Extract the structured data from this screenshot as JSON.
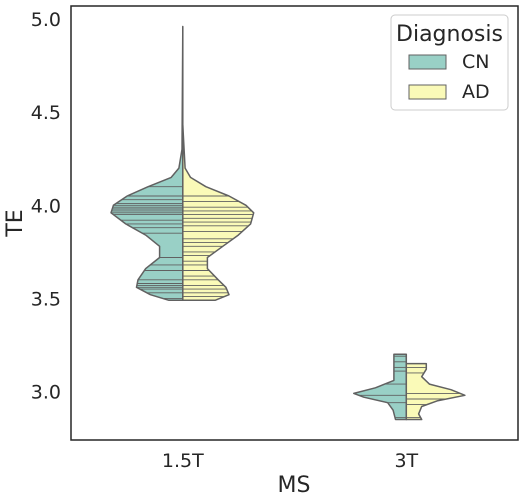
{
  "chart_data": {
    "type": "violin",
    "split": true,
    "inner": "stick",
    "xlabel": "MS",
    "ylabel": "TE",
    "categories": [
      "1.5T",
      "3T"
    ],
    "ylim": [
      2.74,
      5.07
    ],
    "yticks": [
      3.0,
      3.5,
      4.0,
      4.5,
      5.0
    ],
    "ytick_labels": [
      "3.0",
      "3.5",
      "4.0",
      "4.5",
      "5.0"
    ],
    "grid": false,
    "legend": {
      "title": "Diagnosis",
      "placement": "top-right",
      "entries": [
        {
          "name": "CN",
          "color": "#99d0c6"
        },
        {
          "name": "AD",
          "color": "#fafab8"
        }
      ]
    },
    "colors": {
      "CN": "#99d0c6",
      "AD": "#fafab8",
      "outline": "#616161",
      "axes": "#262626"
    },
    "violins": [
      {
        "category": "1.5T",
        "side": "left",
        "series": "CN",
        "ymin": 3.49,
        "ymax": 4.96,
        "density": [
          [
            3.49,
            0.18
          ],
          [
            3.52,
            0.42
          ],
          [
            3.56,
            0.6
          ],
          [
            3.6,
            0.58
          ],
          [
            3.66,
            0.48
          ],
          [
            3.72,
            0.3
          ],
          [
            3.78,
            0.3
          ],
          [
            3.84,
            0.48
          ],
          [
            3.9,
            0.74
          ],
          [
            3.96,
            0.93
          ],
          [
            4.0,
            0.9
          ],
          [
            4.05,
            0.72
          ],
          [
            4.1,
            0.45
          ],
          [
            4.15,
            0.15
          ],
          [
            4.2,
            0.05
          ],
          [
            4.3,
            0.01
          ],
          [
            4.96,
            0.0
          ]
        ],
        "sticks": [
          3.5,
          3.53,
          3.55,
          3.56,
          3.57,
          3.58,
          3.6,
          3.65,
          3.68,
          3.72,
          3.85,
          3.88,
          3.9,
          3.92,
          3.95,
          3.96,
          3.97,
          3.98,
          3.99,
          4.0,
          4.01,
          4.03,
          4.05,
          4.1
        ]
      },
      {
        "category": "1.5T",
        "side": "right",
        "series": "AD",
        "ymin": 3.49,
        "ymax": 4.43,
        "density": [
          [
            3.49,
            0.42
          ],
          [
            3.52,
            0.6
          ],
          [
            3.56,
            0.56
          ],
          [
            3.6,
            0.46
          ],
          [
            3.66,
            0.32
          ],
          [
            3.72,
            0.32
          ],
          [
            3.78,
            0.52
          ],
          [
            3.84,
            0.72
          ],
          [
            3.9,
            0.88
          ],
          [
            3.96,
            0.92
          ],
          [
            4.0,
            0.82
          ],
          [
            4.05,
            0.6
          ],
          [
            4.1,
            0.3
          ],
          [
            4.15,
            0.1
          ],
          [
            4.2,
            0.03
          ],
          [
            4.43,
            0.0
          ]
        ],
        "sticks": [
          3.51,
          3.53,
          3.55,
          3.57,
          3.6,
          3.62,
          3.65,
          3.68,
          3.7,
          3.73,
          3.75,
          3.78,
          3.8,
          3.82,
          3.86,
          3.89,
          3.91,
          3.93,
          3.95,
          3.97,
          3.99,
          4.02,
          4.05
        ]
      },
      {
        "category": "3T",
        "side": "left",
        "series": "CN",
        "ymin": 2.85,
        "ymax": 3.2,
        "density": [
          [
            2.85,
            0.14
          ],
          [
            2.9,
            0.17
          ],
          [
            2.94,
            0.24
          ],
          [
            2.97,
            0.55
          ],
          [
            2.99,
            0.68
          ],
          [
            3.02,
            0.4
          ],
          [
            3.06,
            0.16
          ],
          [
            3.1,
            0.16
          ],
          [
            3.15,
            0.16
          ],
          [
            3.2,
            0.16
          ]
        ],
        "sticks": [
          2.86,
          2.94,
          2.98,
          3.04,
          3.11,
          3.13,
          3.16,
          3.19
        ]
      },
      {
        "category": "3T",
        "side": "right",
        "series": "AD",
        "ymin": 2.85,
        "ymax": 3.15,
        "density": [
          [
            2.85,
            0.2
          ],
          [
            2.88,
            0.16
          ],
          [
            2.92,
            0.2
          ],
          [
            2.95,
            0.4
          ],
          [
            2.98,
            0.76
          ],
          [
            3.01,
            0.58
          ],
          [
            3.04,
            0.3
          ],
          [
            3.08,
            0.2
          ],
          [
            3.12,
            0.26
          ],
          [
            3.15,
            0.26
          ]
        ],
        "sticks": [
          2.86,
          2.93,
          2.96,
          2.99,
          3.1,
          3.13,
          3.15
        ]
      }
    ]
  }
}
